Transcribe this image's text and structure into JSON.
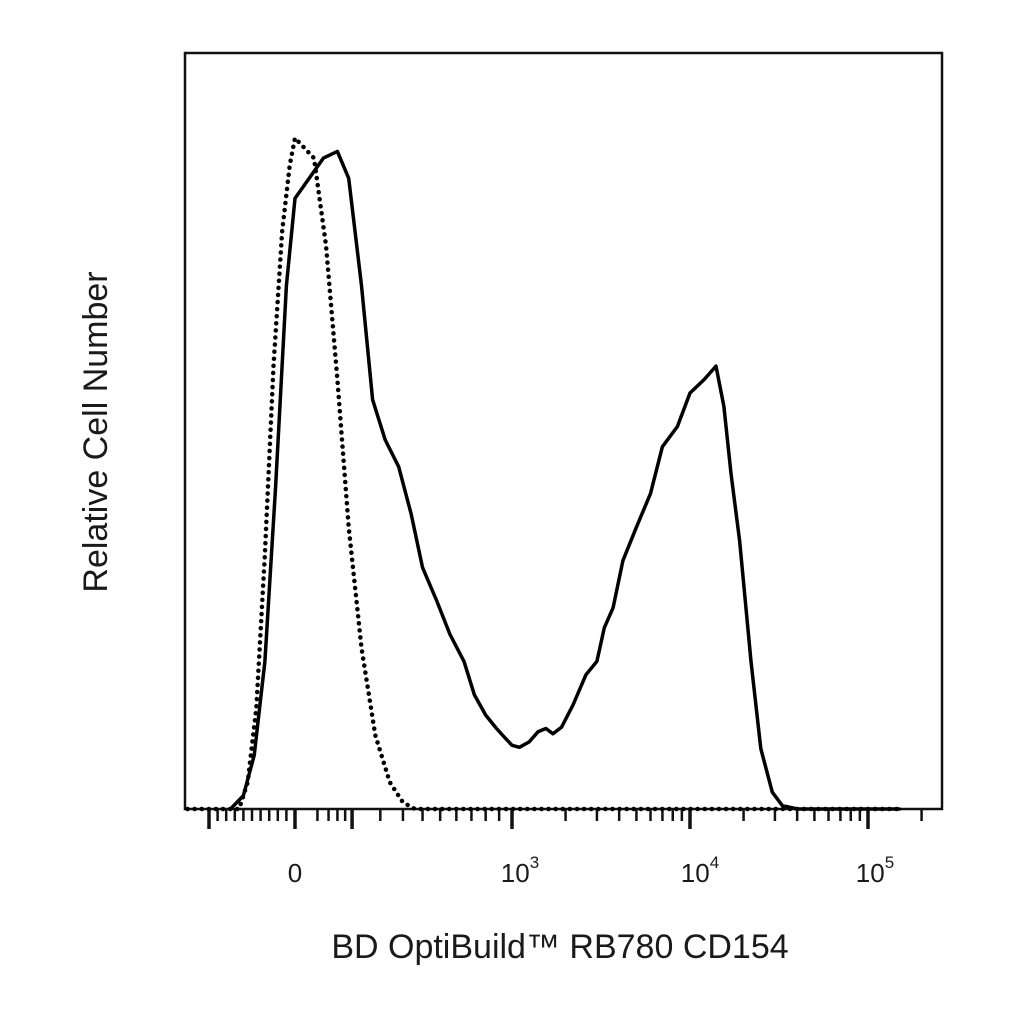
{
  "chart_data": {
    "type": "line",
    "title": "",
    "xlabel": "BD OptiBuild™ RB780 CD154",
    "ylabel": "Relative Cell Number",
    "x_scale": "biexponential (logicle)",
    "ylim": [
      0,
      1
    ],
    "grid": false,
    "legend": "none",
    "x_ticks": [
      {
        "base": "0",
        "exp": ""
      },
      {
        "base": "10",
        "exp": "3"
      },
      {
        "base": "10",
        "exp": "4"
      },
      {
        "base": "10",
        "exp": "5"
      }
    ],
    "series": [
      {
        "style": "solid",
        "color": "#000000",
        "points": [
          [
            -150,
            0.0
          ],
          [
            -120,
            0.02
          ],
          [
            -95,
            0.08
          ],
          [
            -70,
            0.22
          ],
          [
            -45,
            0.48
          ],
          [
            -20,
            0.78
          ],
          [
            0,
            0.91
          ],
          [
            30,
            0.97
          ],
          [
            60,
            0.98
          ],
          [
            90,
            0.94
          ],
          [
            130,
            0.78
          ],
          [
            170,
            0.61
          ],
          [
            220,
            0.55
          ],
          [
            280,
            0.51
          ],
          [
            340,
            0.44
          ],
          [
            400,
            0.36
          ],
          [
            480,
            0.31
          ],
          [
            560,
            0.26
          ],
          [
            650,
            0.22
          ],
          [
            720,
            0.17
          ],
          [
            800,
            0.14
          ],
          [
            880,
            0.12
          ],
          [
            950,
            0.105
          ],
          [
            1000,
            0.095
          ],
          [
            1100,
            0.092
          ],
          [
            1250,
            0.1
          ],
          [
            1400,
            0.115
          ],
          [
            1550,
            0.12
          ],
          [
            1700,
            0.112
          ],
          [
            1900,
            0.122
          ],
          [
            2200,
            0.155
          ],
          [
            2600,
            0.2
          ],
          [
            3000,
            0.22
          ],
          [
            3300,
            0.27
          ],
          [
            3700,
            0.3
          ],
          [
            4200,
            0.37
          ],
          [
            5000,
            0.42
          ],
          [
            6000,
            0.47
          ],
          [
            7000,
            0.54
          ],
          [
            8500,
            0.57
          ],
          [
            10000,
            0.62
          ],
          [
            12000,
            0.64
          ],
          [
            14000,
            0.66
          ],
          [
            15500,
            0.6
          ],
          [
            17000,
            0.5
          ],
          [
            19000,
            0.4
          ],
          [
            22000,
            0.22
          ],
          [
            25000,
            0.09
          ],
          [
            29000,
            0.025
          ],
          [
            33000,
            0.005
          ],
          [
            40000,
            0.0
          ],
          [
            150000,
            0.0
          ]
        ]
      },
      {
        "style": "dotted",
        "color": "#000000",
        "points": [
          [
            -250,
            0.0
          ],
          [
            -130,
            0.0
          ],
          [
            -110,
            0.04
          ],
          [
            -90,
            0.15
          ],
          [
            -70,
            0.38
          ],
          [
            -50,
            0.66
          ],
          [
            -30,
            0.86
          ],
          [
            -12,
            0.96
          ],
          [
            0,
            1.0
          ],
          [
            15,
            0.97
          ],
          [
            35,
            0.84
          ],
          [
            60,
            0.64
          ],
          [
            90,
            0.42
          ],
          [
            130,
            0.24
          ],
          [
            180,
            0.11
          ],
          [
            240,
            0.04
          ],
          [
            300,
            0.01
          ],
          [
            360,
            0.0
          ],
          [
            150000,
            0.0
          ]
        ]
      }
    ]
  }
}
